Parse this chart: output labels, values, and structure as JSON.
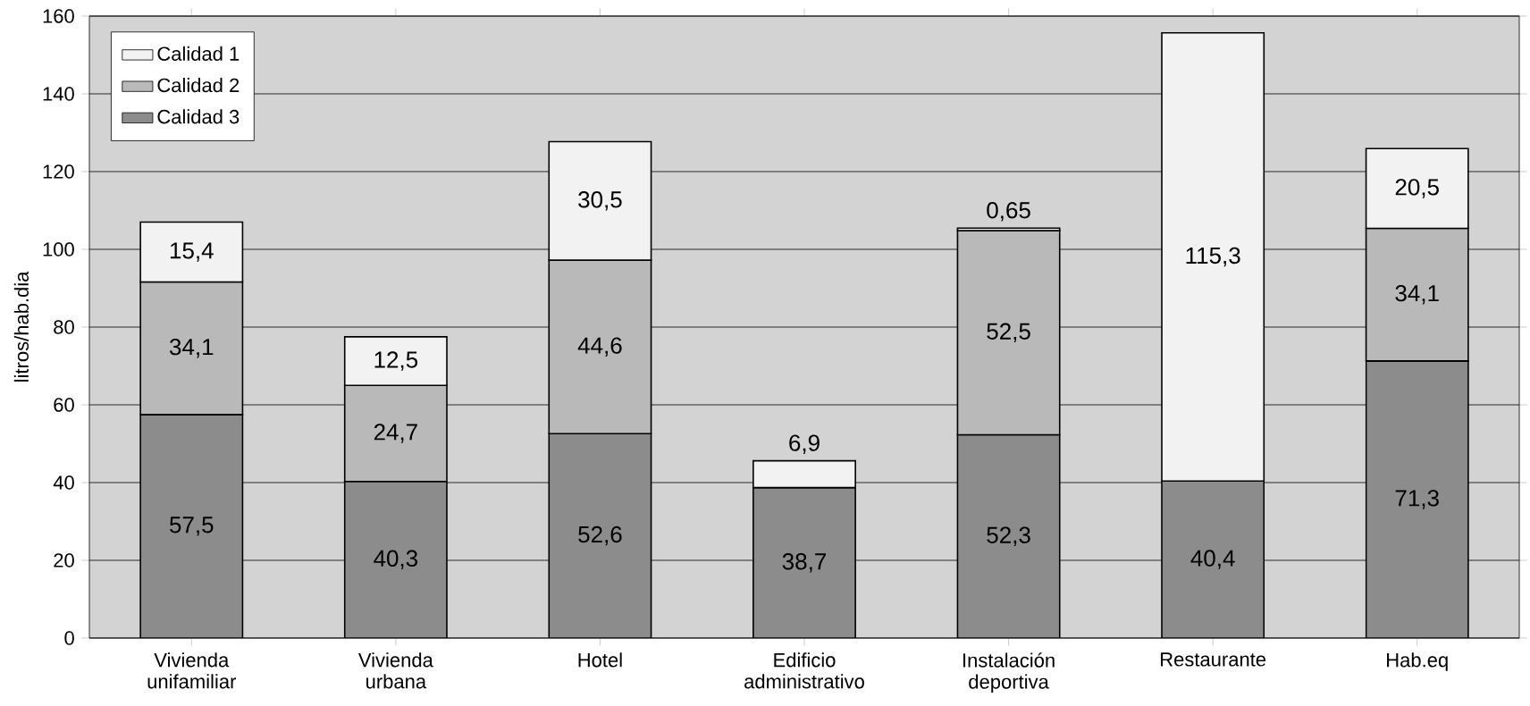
{
  "chart_data": {
    "type": "bar",
    "stacked": true,
    "ylabel": "litros/hab.dia",
    "categories": [
      "Vivienda unifamiliar",
      "Vivienda urbana",
      "Hotel",
      "Edificio administrativo",
      "Instalación deportiva",
      "Restaurante",
      "Hab.eq"
    ],
    "series": [
      {
        "name": "Calidad 3",
        "color": "#8c8c8c",
        "values": [
          57.5,
          40.3,
          52.6,
          38.7,
          52.3,
          40.4,
          71.3
        ],
        "value_labels": [
          "57,5",
          "40,3",
          "52,6",
          "38,7",
          "52,3",
          "40,4",
          "71,3"
        ]
      },
      {
        "name": "Calidad 2",
        "color": "#b9b9b9",
        "values": [
          34.1,
          24.7,
          44.6,
          null,
          52.5,
          null,
          34.1
        ],
        "value_labels": [
          "34,1",
          "24,7",
          "44,6",
          null,
          "52,5",
          null,
          "34,1"
        ]
      },
      {
        "name": "Calidad 1",
        "color": "#f2f2f2",
        "values": [
          15.4,
          12.5,
          30.5,
          6.9,
          0.65,
          115.3,
          20.5
        ],
        "value_labels": [
          "15,4",
          "12,5",
          "30,5",
          "6,9",
          "0,65",
          "115,3",
          "20,5"
        ]
      }
    ],
    "ylim": [
      0,
      160
    ],
    "yticks": [
      0,
      20,
      40,
      60,
      80,
      100,
      120,
      140,
      160
    ],
    "grid": "y",
    "legend": "top left"
  }
}
